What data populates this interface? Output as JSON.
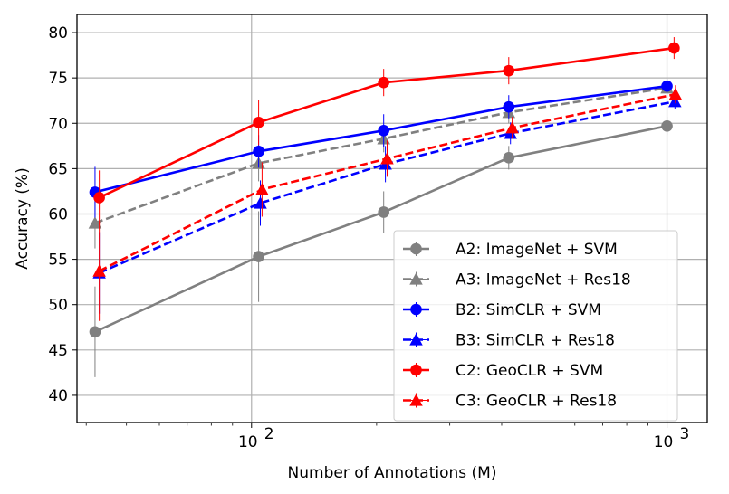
{
  "chart_data": {
    "type": "line",
    "title": "",
    "xlabel": "Number of Annotations (M)",
    "ylabel": "Accuracy (%)",
    "xscale": "log",
    "xlim": [
      38,
      1250
    ],
    "ylim": [
      37,
      82
    ],
    "grid": true,
    "legend_position": "lower-right",
    "x_tick_values": [
      100,
      1000
    ],
    "x_tick_labels": [
      {
        "base": "10",
        "exp": "2"
      },
      {
        "base": "10",
        "exp": "3"
      }
    ],
    "y_ticks": [
      40,
      45,
      50,
      55,
      60,
      65,
      70,
      75,
      80
    ],
    "series": [
      {
        "name": "A2: ImageNet + SVM",
        "color": "#808080",
        "linestyle": "solid",
        "marker": "circle",
        "x": [
          42,
          104,
          208,
          416,
          1000
        ],
        "y": [
          47.0,
          55.3,
          60.2,
          66.2,
          69.7
        ],
        "err": [
          5.0,
          5.0,
          2.3,
          1.3,
          1.0
        ]
      },
      {
        "name": "A3: ImageNet + Res18",
        "color": "#808080",
        "linestyle": "dashed",
        "marker": "triangle",
        "x": [
          42,
          104,
          208,
          416,
          1000
        ],
        "y": [
          59.0,
          65.6,
          68.3,
          71.2,
          73.9
        ],
        "err": [
          2.8,
          2.0,
          1.5,
          1.2,
          1.0
        ]
      },
      {
        "name": "B2: SimCLR + SVM",
        "color": "#0000ff",
        "linestyle": "solid",
        "marker": "circle",
        "x": [
          42,
          104,
          208,
          416,
          1000
        ],
        "y": [
          62.4,
          66.9,
          69.2,
          71.8,
          74.1
        ],
        "err": [
          2.8,
          1.8,
          1.8,
          1.3,
          0.8
        ]
      },
      {
        "name": "B3: SimCLR + Res18",
        "color": "#0000ff",
        "linestyle": "dashed",
        "marker": "triangle",
        "x": [
          43,
          105,
          210,
          420,
          1045
        ],
        "y": [
          53.5,
          61.2,
          65.5,
          68.9,
          72.4
        ],
        "err": [
          4.5,
          2.5,
          2.0,
          1.2,
          0.8
        ]
      },
      {
        "name": "C2: GeoCLR + SVM",
        "color": "#ff0000",
        "linestyle": "solid",
        "marker": "circle",
        "x": [
          43,
          104,
          208,
          416,
          1040
        ],
        "y": [
          61.8,
          70.1,
          74.5,
          75.8,
          78.3
        ],
        "err": [
          3.0,
          2.5,
          1.5,
          1.5,
          1.2
        ]
      },
      {
        "name": "C3: GeoCLR + Res18",
        "color": "#ff0000",
        "linestyle": "dashed",
        "marker": "triangle",
        "x": [
          43,
          106,
          212,
          424,
          1048
        ],
        "y": [
          53.7,
          62.7,
          66.1,
          69.5,
          73.2
        ],
        "err": [
          5.5,
          3.0,
          2.0,
          1.2,
          1.0
        ]
      }
    ]
  }
}
